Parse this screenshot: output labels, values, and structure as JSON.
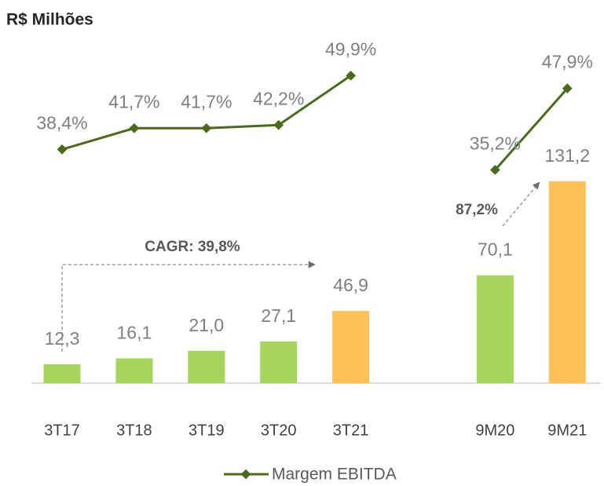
{
  "chart_data": {
    "type": "bar",
    "title": "R$ Milhões",
    "categories": [
      "3T17",
      "3T18",
      "3T19",
      "3T20",
      "3T21",
      null,
      "9M20",
      "9M21"
    ],
    "series": [
      {
        "name": "EBITDA",
        "type": "bar",
        "colors": [
          "#a6d55e",
          "#a6d55e",
          "#a6d55e",
          "#a6d55e",
          "#ffc15a",
          null,
          "#a6d55e",
          "#ffc15a"
        ],
        "values": [
          12.3,
          16.1,
          21.0,
          27.1,
          46.9,
          null,
          70.1,
          131.2
        ],
        "value_labels": [
          "12,3",
          "16,1",
          "21,0",
          "27,1",
          "46,9",
          null,
          "70,1",
          "131,2"
        ]
      },
      {
        "name": "Margem EBITDA",
        "type": "line",
        "color": "#4a6a1d",
        "values": [
          38.4,
          41.7,
          41.7,
          42.2,
          49.9,
          null,
          35.2,
          47.9
        ],
        "value_labels": [
          "38,4%",
          "41,7%",
          "41,7%",
          "42,2%",
          "49,9%",
          null,
          "35,2%",
          "47,9%"
        ]
      }
    ],
    "annotations": [
      "CAGR: 39,8%",
      "87,2%"
    ],
    "legend": "bottom"
  }
}
